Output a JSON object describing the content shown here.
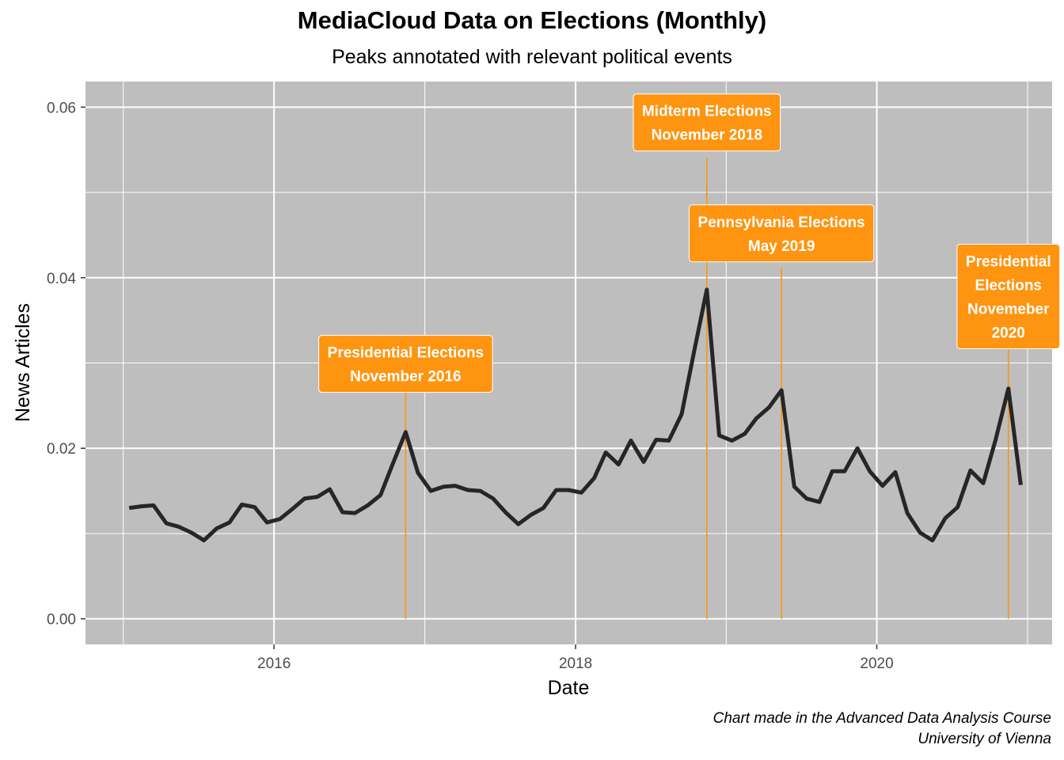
{
  "chart_data": {
    "type": "line",
    "title": "MediaCloud Data on Elections (Monthly)",
    "subtitle": "Peaks annotated with relevant political events",
    "xlabel": "Date",
    "ylabel": "News Articles",
    "xlim": [
      "2014-10-01",
      "2021-03-01"
    ],
    "ylim": [
      -0.003,
      0.063
    ],
    "x_ticks": [
      {
        "date": "2016-01-01",
        "label": "2016"
      },
      {
        "date": "2018-01-01",
        "label": "2018"
      },
      {
        "date": "2020-01-01",
        "label": "2020"
      }
    ],
    "y_ticks": [
      {
        "value": 0.0,
        "label": "0.00"
      },
      {
        "value": 0.02,
        "label": "0.02"
      },
      {
        "value": 0.04,
        "label": "0.04"
      },
      {
        "value": 0.06,
        "label": "0.06"
      }
    ],
    "grid": true,
    "line_color": "#262626",
    "series": [
      {
        "x": [
          "2015-01",
          "2015-02",
          "2015-03",
          "2015-04",
          "2015-05",
          "2015-06",
          "2015-07",
          "2015-08",
          "2015-09",
          "2015-10",
          "2015-11",
          "2015-12",
          "2016-01",
          "2016-02",
          "2016-03",
          "2016-04",
          "2016-05",
          "2016-06",
          "2016-07",
          "2016-08",
          "2016-09",
          "2016-10",
          "2016-11",
          "2016-12",
          "2017-01",
          "2017-02",
          "2017-03",
          "2017-04",
          "2017-05",
          "2017-06",
          "2017-07",
          "2017-08",
          "2017-09",
          "2017-10",
          "2017-11",
          "2017-12",
          "2018-01",
          "2018-02",
          "2018-03",
          "2018-04",
          "2018-05",
          "2018-06",
          "2018-07",
          "2018-08",
          "2018-09",
          "2018-10",
          "2018-11",
          "2018-12",
          "2019-01",
          "2019-02",
          "2019-03",
          "2019-04",
          "2019-05",
          "2019-06",
          "2019-07",
          "2019-08",
          "2019-09",
          "2019-10",
          "2019-11",
          "2019-12",
          "2020-01",
          "2020-02",
          "2020-03",
          "2020-04",
          "2020-05",
          "2020-06",
          "2020-07",
          "2020-08",
          "2020-09",
          "2020-10",
          "2020-11",
          "2020-12"
        ],
        "values": [
          0.013,
          0.0132,
          0.0133,
          0.0112,
          0.0108,
          0.0101,
          0.0092,
          0.0106,
          0.0113,
          0.0134,
          0.0131,
          0.0113,
          0.0117,
          0.0129,
          0.0141,
          0.0143,
          0.0152,
          0.0125,
          0.0124,
          0.0133,
          0.0145,
          0.0182,
          0.0219,
          0.0171,
          0.015,
          0.0155,
          0.0156,
          0.0151,
          0.015,
          0.0141,
          0.0125,
          0.0111,
          0.0122,
          0.013,
          0.0151,
          0.0151,
          0.0148,
          0.0165,
          0.0195,
          0.0181,
          0.0209,
          0.0184,
          0.021,
          0.0209,
          0.024,
          0.0313,
          0.0386,
          0.0215,
          0.0209,
          0.0217,
          0.0235,
          0.0248,
          0.0268,
          0.0155,
          0.0141,
          0.0137,
          0.0173,
          0.0173,
          0.02,
          0.0173,
          0.0156,
          0.0172,
          0.0124,
          0.0101,
          0.0092,
          0.0118,
          0.0131,
          0.0174,
          0.0159,
          0.021,
          0.027,
          0.0157
        ]
      }
    ],
    "annotations": [
      {
        "date": "2016-11",
        "y_line_top": 0.027,
        "y_label_center": 0.0299,
        "lines": [
          "Presidential Elections",
          "November 2016"
        ]
      },
      {
        "date": "2018-11",
        "y_line_top": 0.054,
        "y_label_center": 0.0582,
        "lines": [
          "Midterm Elections",
          "November 2018"
        ]
      },
      {
        "date": "2019-05",
        "y_line_top": 0.0412,
        "y_label_center": 0.0452,
        "lines": [
          "Pennsylvania Elections",
          "May 2019"
        ]
      },
      {
        "date": "2020-11",
        "y_line_top": 0.0325,
        "y_label_center": 0.0378,
        "lines": [
          "Presidential",
          "Elections",
          "Novemeber",
          "2020"
        ]
      }
    ],
    "annotation_color": "#ff9410",
    "panel_color": "#bebebe"
  },
  "caption": {
    "line1": "Chart made in the Advanced Data Analysis Course",
    "line2": "University of Vienna"
  }
}
